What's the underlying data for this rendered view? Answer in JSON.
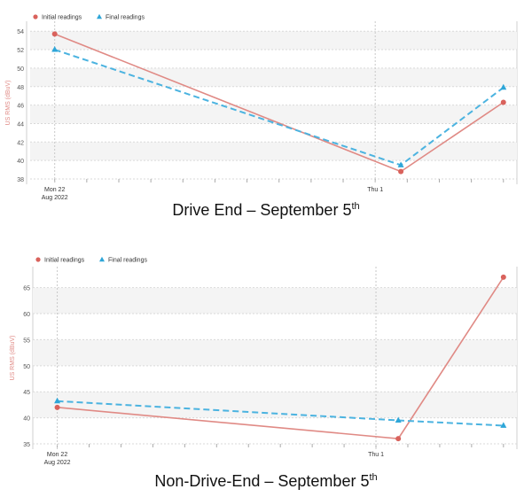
{
  "chart_data": [
    {
      "type": "line",
      "caption": "Drive End – September 5",
      "caption_sup": "th",
      "ylabel": "US RMS (dBuV)",
      "ylim": [
        38,
        54.5
      ],
      "yticks": [
        38,
        40,
        42,
        44,
        46,
        48,
        50,
        52,
        54
      ],
      "x_tick_labels": [
        {
          "x": 0,
          "label": "Mon 22",
          "sub": "Aug 2022"
        },
        {
          "x": 10,
          "label": "Thu 1",
          "sub": ""
        }
      ],
      "x_range": [
        -0.6,
        14.2
      ],
      "series": [
        {
          "name": "Initial readings",
          "color": "#e08a85",
          "marker": "circle",
          "dash": "none",
          "x": [
            0,
            10.8,
            14
          ],
          "values": [
            53.7,
            38.8,
            46.3
          ]
        },
        {
          "name": "Final readings",
          "color": "#4bb3e0",
          "marker": "triangle",
          "dash": "dashed",
          "x": [
            0,
            10.8,
            14
          ],
          "values": [
            52.0,
            39.5,
            47.9
          ]
        }
      ],
      "legend": "top-left",
      "grid": true
    },
    {
      "type": "line",
      "caption": "Non-Drive-End – September 5",
      "caption_sup": "th",
      "ylabel": "US RMS (dBuV)",
      "ylim": [
        35,
        68
      ],
      "yticks": [
        35,
        40,
        45,
        50,
        55,
        60,
        65
      ],
      "x_tick_labels": [
        {
          "x": 0,
          "label": "Mon 22",
          "sub": "Aug 2022"
        },
        {
          "x": 10,
          "label": "Thu 1",
          "sub": ""
        }
      ],
      "x_range": [
        -0.6,
        14.2
      ],
      "series": [
        {
          "name": "Initial readings",
          "color": "#e08a85",
          "marker": "circle",
          "dash": "none",
          "x": [
            0,
            10.7,
            14
          ],
          "values": [
            42.0,
            36.0,
            67.0
          ]
        },
        {
          "name": "Final readings",
          "color": "#4bb3e0",
          "marker": "triangle",
          "dash": "dashed",
          "x": [
            0,
            10.7,
            14
          ],
          "values": [
            43.2,
            39.5,
            38.5
          ]
        }
      ],
      "legend": "top-left",
      "grid": true
    }
  ]
}
